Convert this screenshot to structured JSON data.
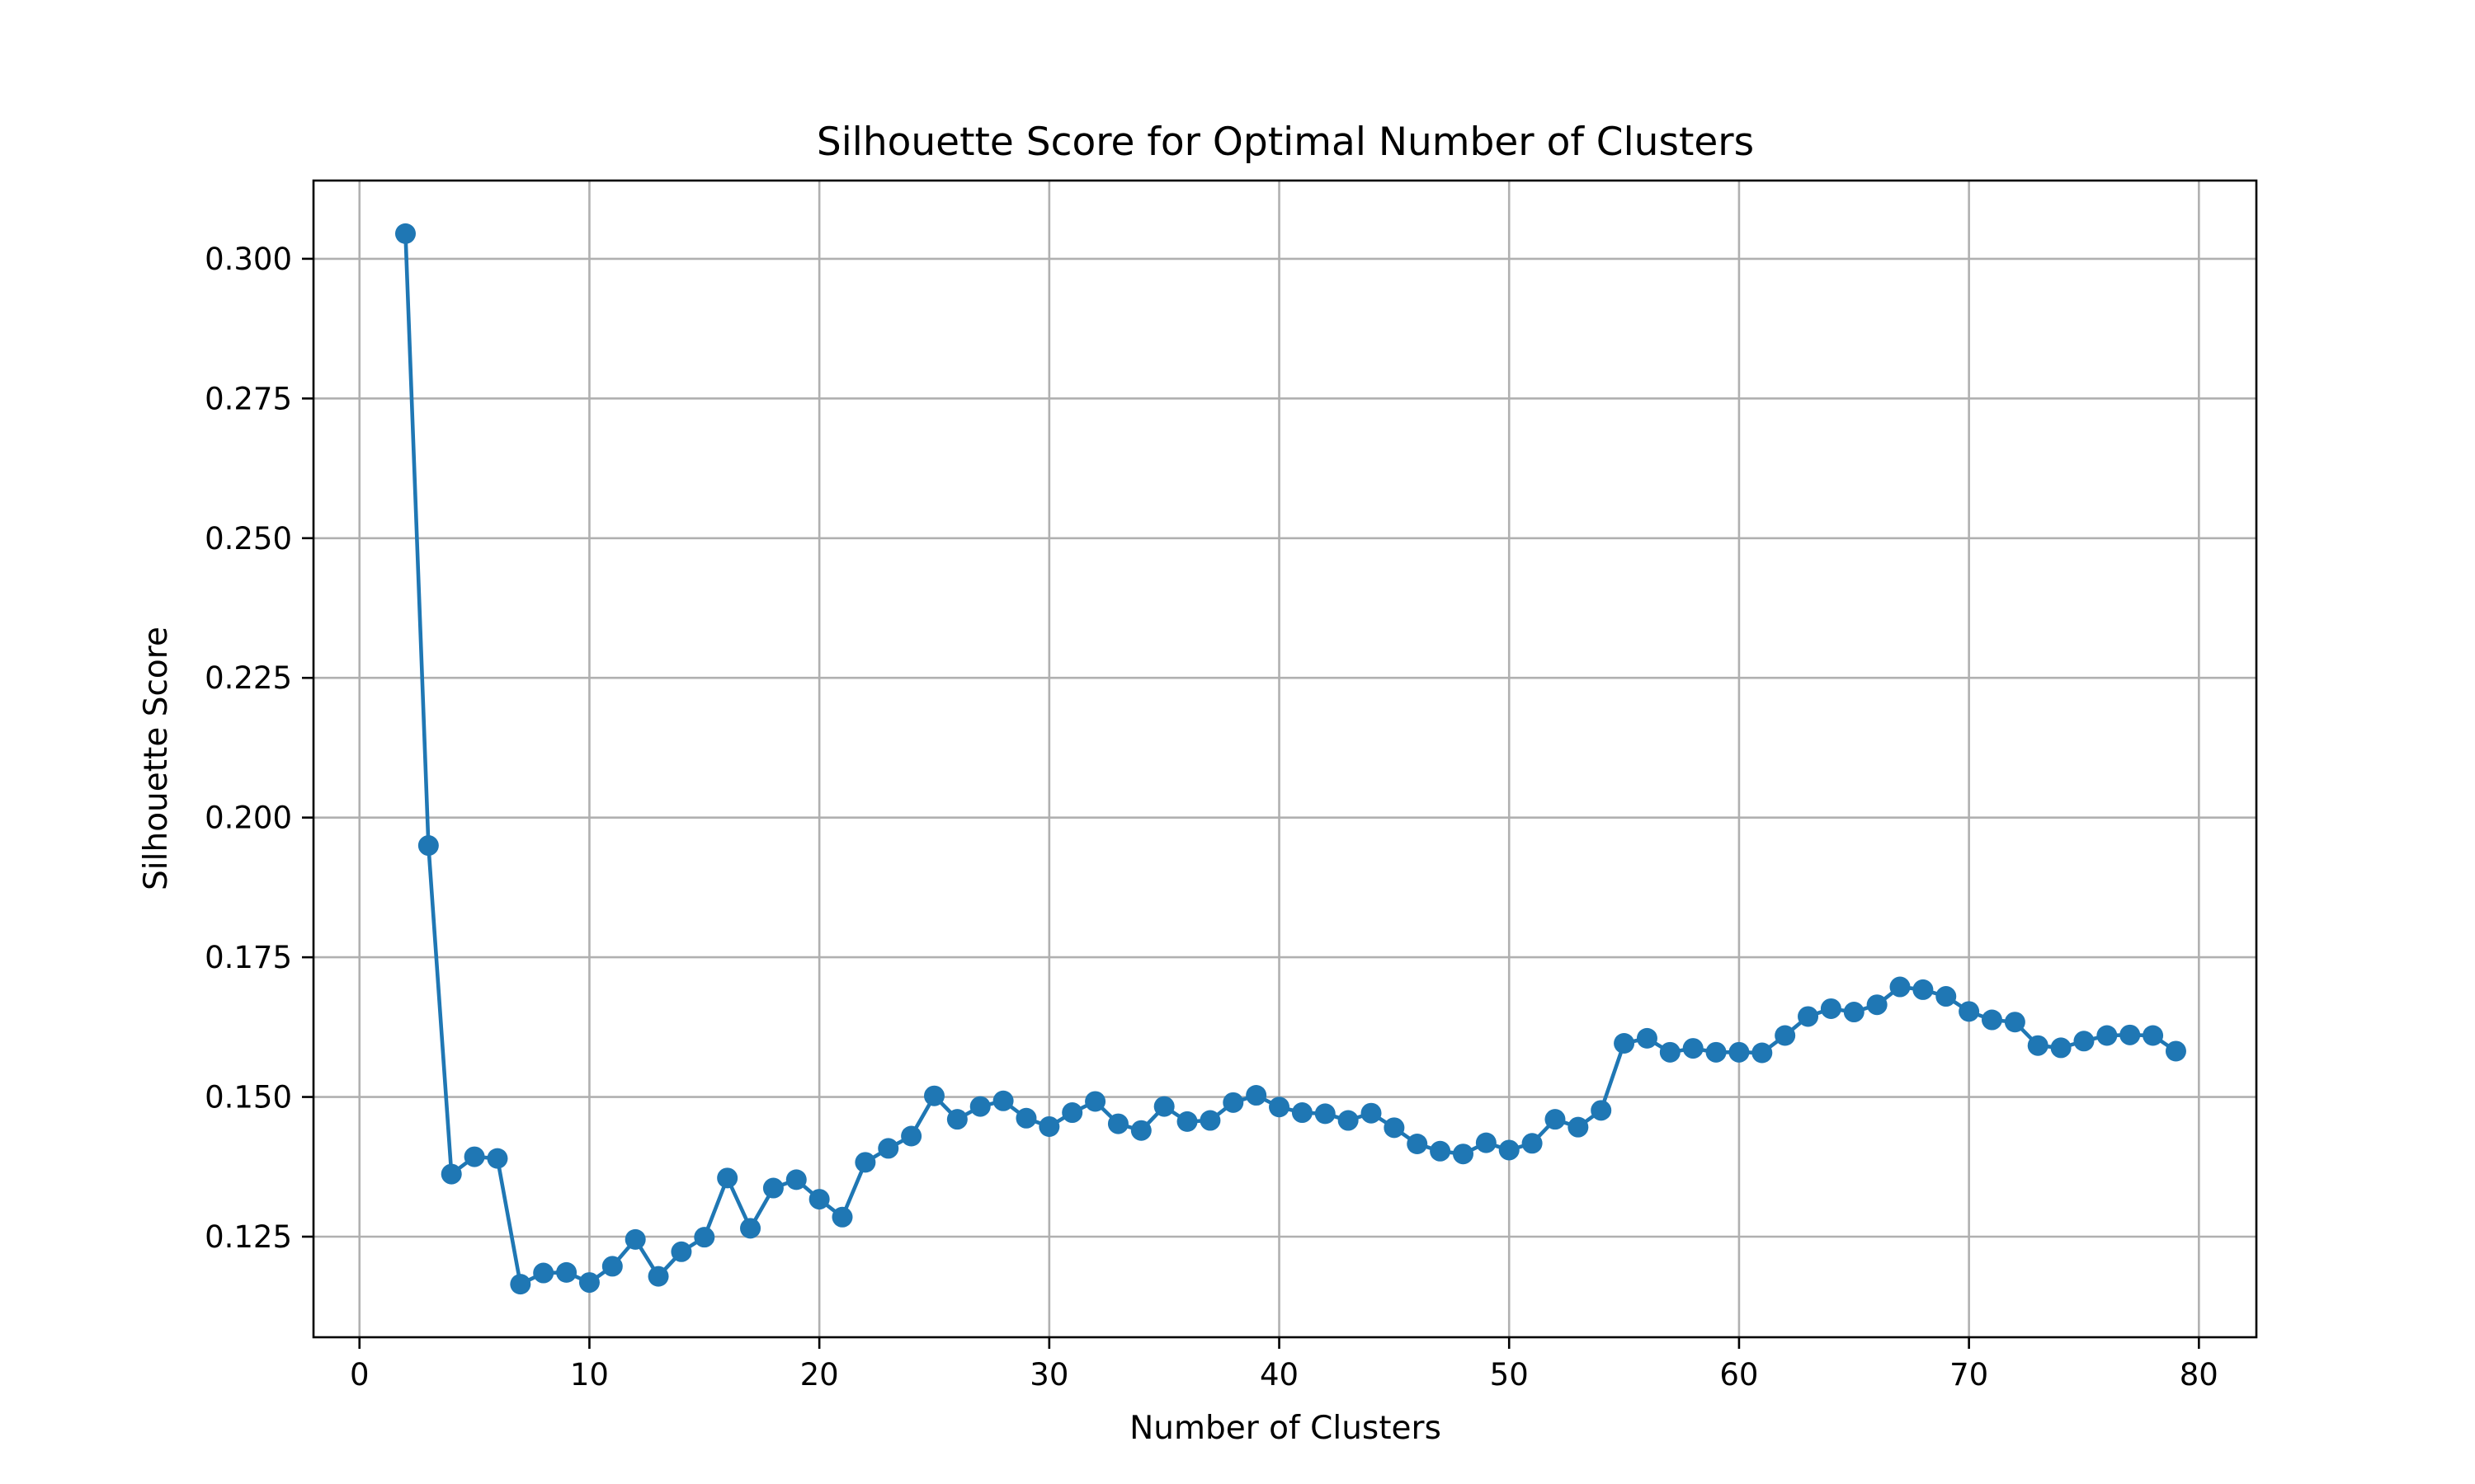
{
  "chart_data": {
    "type": "line",
    "title": "Silhouette Score for Optimal Number of Clusters",
    "xlabel": "Number of Clusters",
    "ylabel": "Silhouette Score",
    "xlim": [
      -2,
      82.5
    ],
    "ylim": [
      0.107,
      0.314
    ],
    "xticks": [
      0,
      10,
      20,
      30,
      40,
      50,
      60,
      70,
      80
    ],
    "xtick_labels": [
      "0",
      "10",
      "20",
      "30",
      "40",
      "50",
      "60",
      "70",
      "80"
    ],
    "yticks": [
      0.125,
      0.15,
      0.175,
      0.2,
      0.225,
      0.25,
      0.275,
      0.3
    ],
    "ytick_labels": [
      "0.125",
      "0.150",
      "0.175",
      "0.200",
      "0.225",
      "0.250",
      "0.275",
      "0.300"
    ],
    "grid": true,
    "marker": "circle",
    "color": "#1f77b4",
    "x": [
      2,
      3,
      4,
      5,
      6,
      7,
      8,
      9,
      10,
      11,
      12,
      13,
      14,
      15,
      16,
      17,
      18,
      19,
      20,
      21,
      22,
      23,
      24,
      25,
      26,
      27,
      28,
      29,
      30,
      31,
      32,
      33,
      34,
      35,
      36,
      37,
      38,
      39,
      40,
      41,
      42,
      43,
      44,
      45,
      46,
      47,
      48,
      49,
      50,
      51,
      52,
      53,
      54,
      55,
      56,
      57,
      58,
      59,
      60,
      61,
      62,
      63,
      64,
      65,
      66,
      67,
      68,
      69,
      70,
      71,
      72,
      73,
      74,
      75,
      76,
      77,
      78,
      79
    ],
    "y": [
      0.3045,
      0.195,
      0.1362,
      0.1393,
      0.139,
      0.1165,
      0.1185,
      0.1186,
      0.1168,
      0.1197,
      0.1245,
      0.1179,
      0.1223,
      0.1249,
      0.1355,
      0.1265,
      0.1337,
      0.1352,
      0.1317,
      0.1285,
      0.1383,
      0.1408,
      0.143,
      0.1502,
      0.146,
      0.1483,
      0.1493,
      0.1462,
      0.1447,
      0.1472,
      0.1492,
      0.1452,
      0.144,
      0.1483,
      0.1456,
      0.1458,
      0.149,
      0.1503,
      0.1482,
      0.1472,
      0.147,
      0.1458,
      0.1471,
      0.1445,
      0.1416,
      0.1403,
      0.1398,
      0.1418,
      0.1405,
      0.1417,
      0.146,
      0.1446,
      0.1476,
      0.1596,
      0.1605,
      0.158,
      0.1587,
      0.158,
      0.158,
      0.1579,
      0.161,
      0.1644,
      0.1658,
      0.1652,
      0.1665,
      0.1697,
      0.1692,
      0.168,
      0.1653,
      0.1638,
      0.1634,
      0.1592,
      0.1588,
      0.16,
      0.161,
      0.1611,
      0.161,
      0.1582
    ]
  }
}
